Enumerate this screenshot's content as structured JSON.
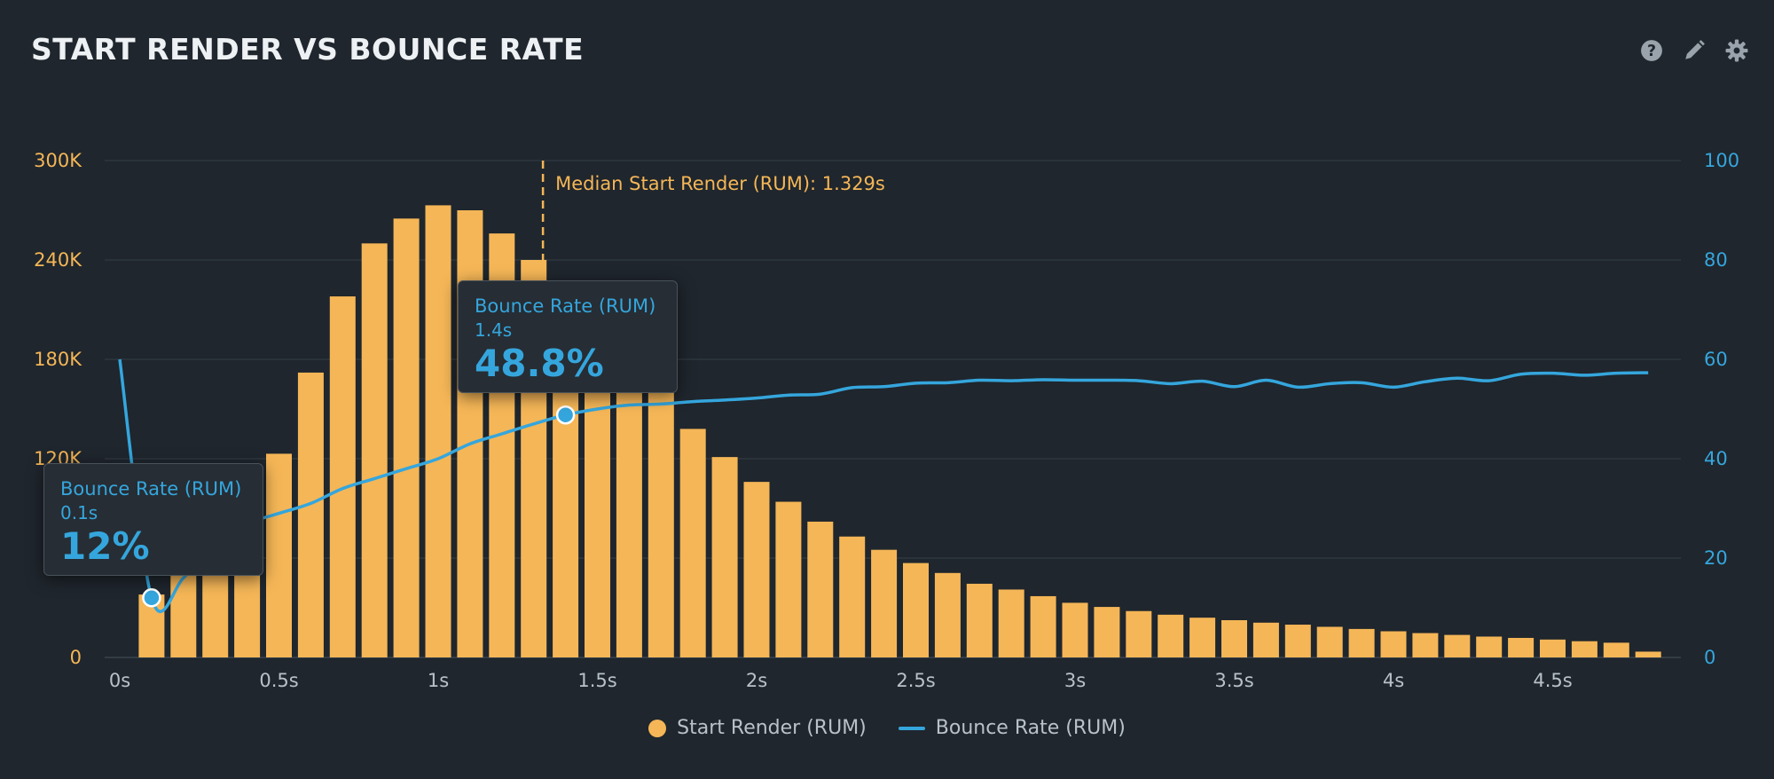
{
  "header": {
    "title": "START RENDER VS BOUNCE RATE",
    "tools": [
      "help-icon",
      "pencil-icon",
      "gear-icon"
    ]
  },
  "colors": {
    "background": "#1f262d",
    "bars": "#f5b657",
    "line": "#35a6dd",
    "grid": "#2f373f"
  },
  "chart_data": {
    "type": "bar",
    "title": "START RENDER VS BOUNCE RATE",
    "xlabel": "",
    "ylabel_left": "",
    "ylabel_right": "",
    "x_ticks": [
      "0s",
      "0.5s",
      "1s",
      "1.5s",
      "2s",
      "2.5s",
      "3s",
      "3.5s",
      "4s",
      "4.5s"
    ],
    "x_tick_values": [
      0,
      0.5,
      1,
      1.5,
      2,
      2.5,
      3,
      3.5,
      4,
      4.5
    ],
    "left_ticks": [
      "0",
      "60K",
      "120K",
      "180K",
      "240K",
      "300K"
    ],
    "left_tick_values": [
      0,
      60000,
      120000,
      180000,
      240000,
      300000
    ],
    "right_ticks": [
      "0",
      "20",
      "40",
      "60",
      "80",
      "100"
    ],
    "right_tick_values": [
      0,
      20,
      40,
      60,
      80,
      100
    ],
    "xlim": [
      0,
      4.95
    ],
    "ylim_left": [
      0,
      300000
    ],
    "ylim_right": [
      0,
      100
    ],
    "grid": true,
    "legend_position": "bottom-center",
    "series": [
      {
        "name": "Start Render (RUM)",
        "type": "bar",
        "axis": "left",
        "color": "#f5b657",
        "x": [
          0.1,
          0.2,
          0.3,
          0.4,
          0.5,
          0.6,
          0.7,
          0.8,
          0.9,
          1.0,
          1.1,
          1.2,
          1.3,
          1.4,
          1.5,
          1.6,
          1.7,
          1.8,
          1.9,
          2.0,
          2.1,
          2.2,
          2.3,
          2.4,
          2.5,
          2.6,
          2.7,
          2.8,
          2.9,
          3.0,
          3.1,
          3.2,
          3.3,
          3.4,
          3.5,
          3.6,
          3.7,
          3.8,
          3.9,
          4.0,
          4.1,
          4.2,
          4.3,
          4.4,
          4.5,
          4.6,
          4.7,
          4.8
        ],
        "values": [
          38000,
          60000,
          78000,
          95000,
          123000,
          172000,
          218000,
          250000,
          265000,
          273000,
          270000,
          256000,
          240000,
          210000,
          185000,
          165000,
          160000,
          138000,
          121000,
          106000,
          94000,
          82000,
          73000,
          65000,
          57000,
          51000,
          44500,
          41000,
          37000,
          33000,
          30500,
          28000,
          25800,
          24000,
          22500,
          21000,
          19800,
          18500,
          17200,
          15800,
          14700,
          13600,
          12600,
          11800,
          10800,
          9800,
          8900,
          3500
        ]
      },
      {
        "name": "Bounce Rate (RUM)",
        "type": "line",
        "axis": "right",
        "color": "#35a6dd",
        "x": [
          0.0,
          0.1,
          0.2,
          0.3,
          0.4,
          0.5,
          0.6,
          0.7,
          0.8,
          0.9,
          1.0,
          1.1,
          1.2,
          1.3,
          1.4,
          1.5,
          1.6,
          1.7,
          1.8,
          1.9,
          2.0,
          2.1,
          2.2,
          2.3,
          2.4,
          2.5,
          2.6,
          2.7,
          2.8,
          2.9,
          3.0,
          3.1,
          3.2,
          3.3,
          3.4,
          3.5,
          3.6,
          3.7,
          3.8,
          3.9,
          4.0,
          4.1,
          4.2,
          4.3,
          4.4,
          4.5,
          4.6,
          4.7,
          4.8
        ],
        "values": [
          60,
          12,
          16,
          24,
          27,
          29,
          31,
          34,
          36,
          38,
          40,
          43,
          45,
          47,
          48.8,
          50,
          50.8,
          51,
          51.5,
          51.8,
          52.2,
          52.8,
          53,
          54.3,
          54.5,
          55.2,
          55.3,
          55.8,
          55.7,
          55.9,
          55.8,
          55.8,
          55.7,
          55.1,
          55.6,
          54.5,
          55.8,
          54.4,
          55.1,
          55.3,
          54.4,
          55.5,
          56.2,
          55.7,
          57,
          57.2,
          56.8,
          57.2,
          57.3
        ]
      }
    ],
    "annotations": [
      {
        "text": "Median Start Render (RUM): 1.329s",
        "x": 1.329,
        "style": "dashed-vertical-line"
      }
    ],
    "tooltips": [
      {
        "series": "Bounce Rate (RUM)",
        "x_label": "0.1s",
        "value_label": "12%",
        "x": 0.1,
        "y": 12
      },
      {
        "series": "Bounce Rate (RUM)",
        "x_label": "1.4s",
        "value_label": "48.8%",
        "x": 1.4,
        "y": 48.8
      }
    ]
  },
  "legend": {
    "items": [
      {
        "label": "Start Render (RUM)",
        "marker": "dot"
      },
      {
        "label": "Bounce Rate (RUM)",
        "marker": "line"
      }
    ]
  }
}
